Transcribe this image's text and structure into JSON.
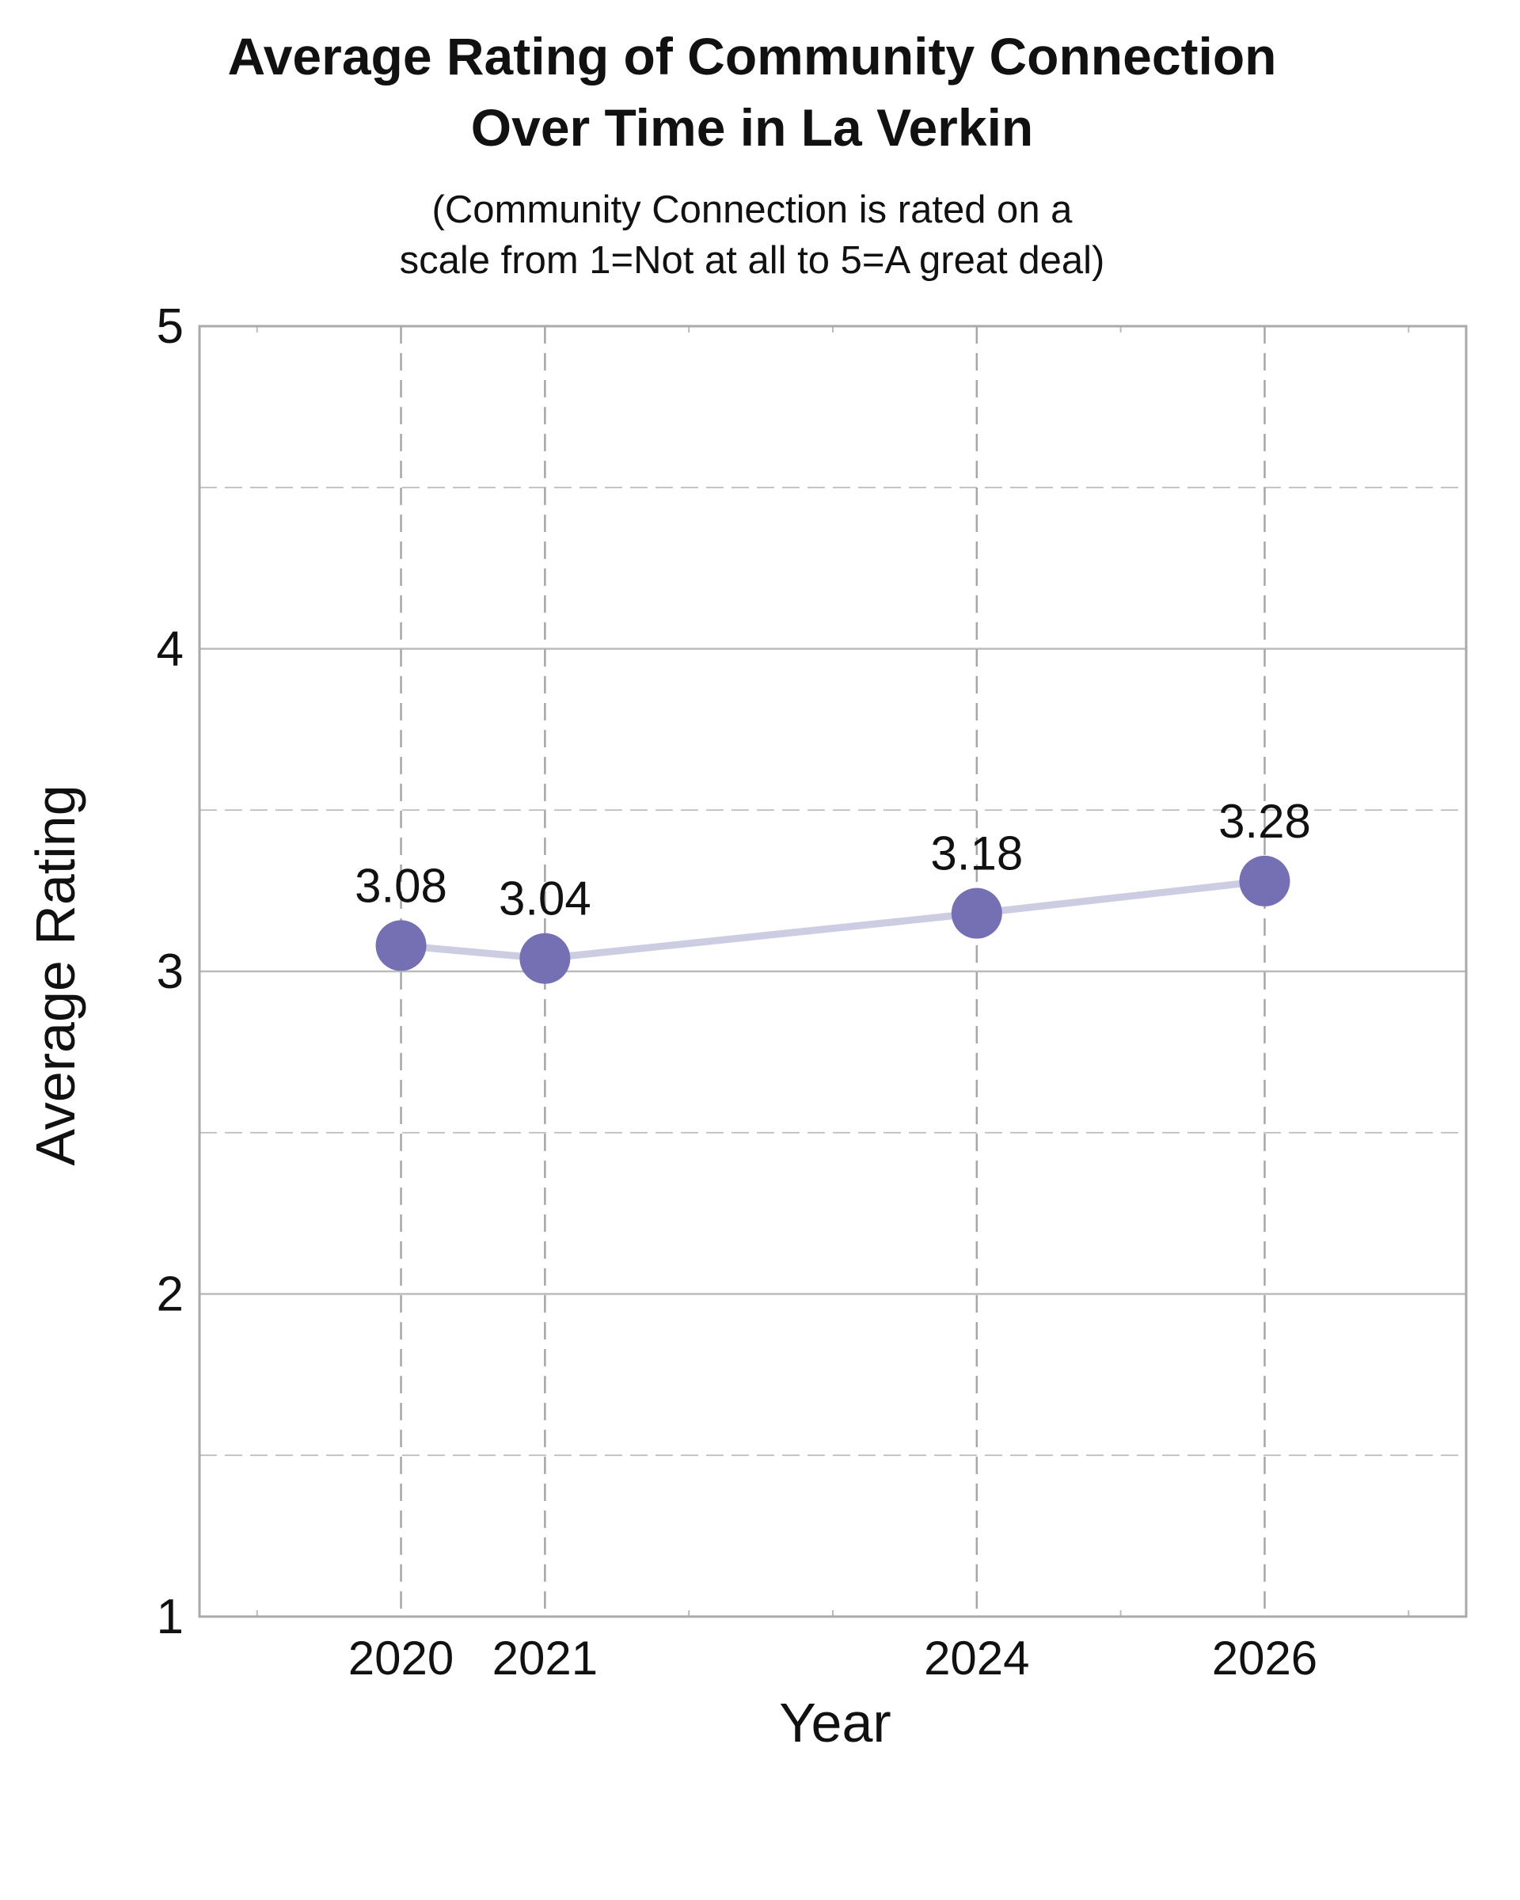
{
  "title_lines": [
    "Average Rating of Community Connection",
    "Over Time in La Verkin"
  ],
  "subtitle_lines": [
    "(Community Connection is rated on a",
    "scale from 1=Not at all to 5=A great deal)"
  ],
  "chart_data": {
    "type": "line",
    "xlabel": "Year",
    "ylabel": "Average Rating",
    "x": [
      2020,
      2021,
      2024,
      2026
    ],
    "y": [
      3.08,
      3.04,
      3.18,
      3.28
    ],
    "data_labels": [
      "3.08",
      "3.04",
      "3.18",
      "3.28"
    ],
    "x_tick_labels": [
      "2020",
      "2021",
      "2024",
      "2026"
    ],
    "y_tick_labels": [
      "1",
      "2",
      "3",
      "4",
      "5"
    ],
    "ylim": [
      1,
      5
    ],
    "xlim": [
      2018.6,
      2027.4
    ],
    "grid": true,
    "colors": {
      "line": "#cccce3",
      "marker": "#7570b3",
      "grid": "#bbbbbb",
      "frame": "#aaaaaa"
    }
  }
}
